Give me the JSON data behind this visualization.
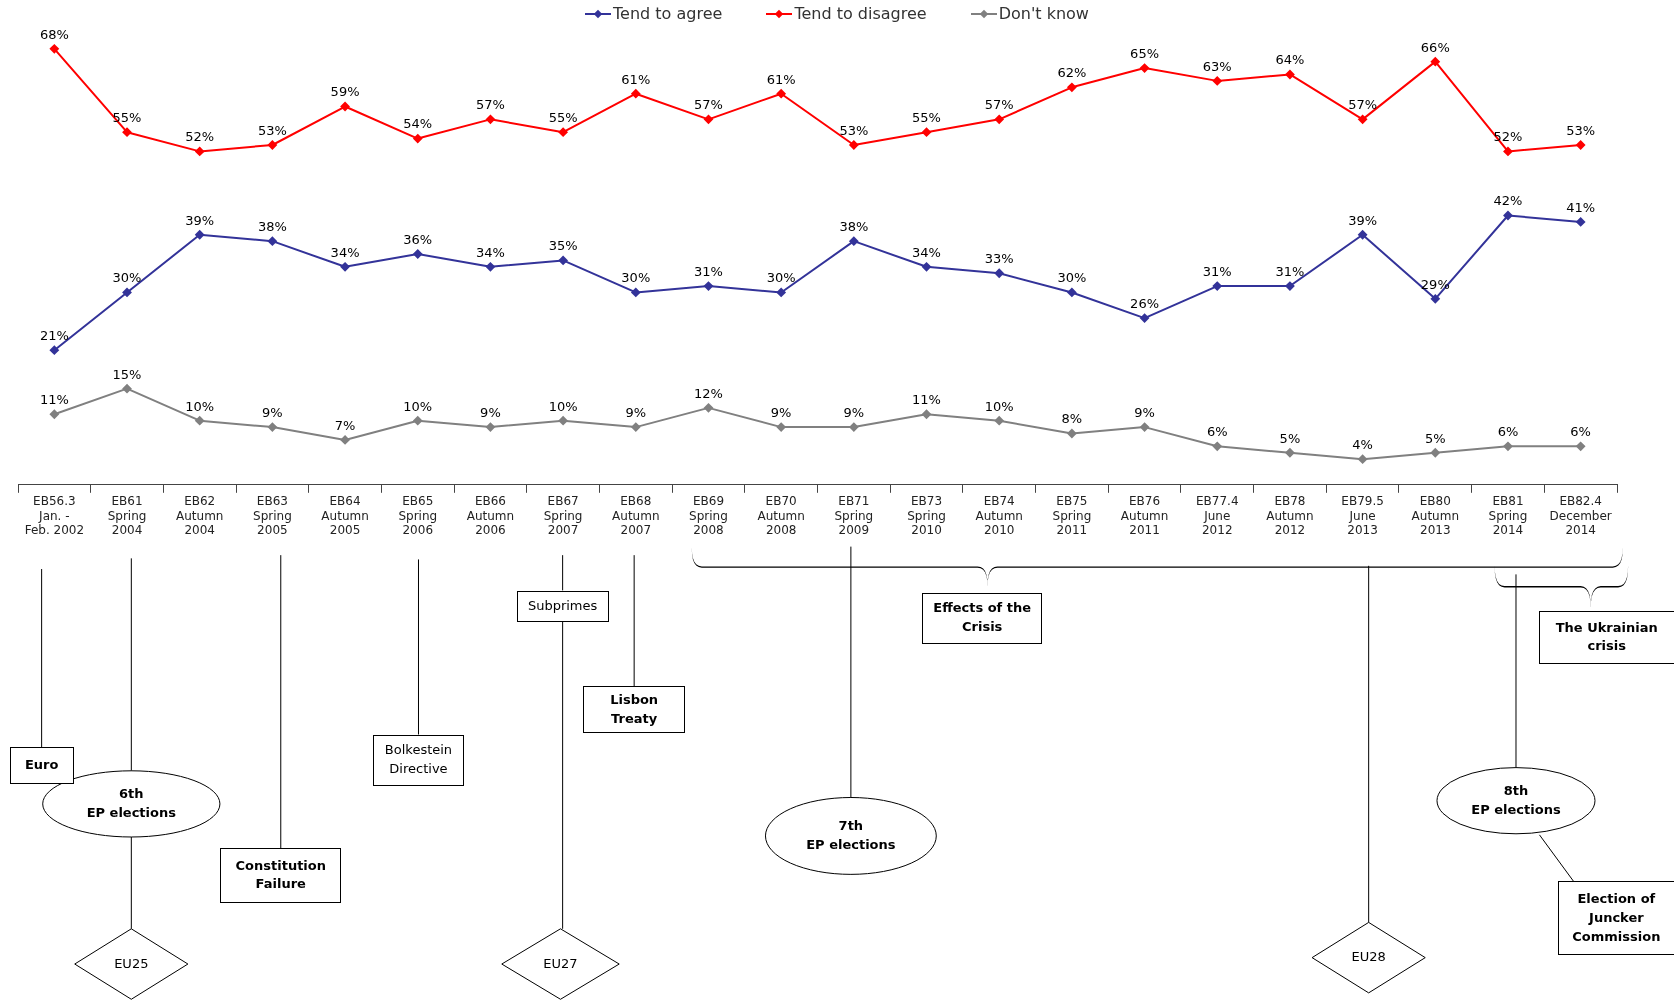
{
  "chart_data": {
    "type": "line",
    "legend": "top",
    "marker": "diamond",
    "grid": false,
    "tick_labels": "x",
    "categories": [
      "EB56.3\nJan. -\nFeb. 2002",
      "EB61\nSpring\n2004",
      "EB62\nAutumn\n2004",
      "EB63\nSpring\n2005",
      "EB64\nAutumn\n2005",
      "EB65\nSpring\n2006",
      "EB66\nAutumn\n2006",
      "EB67\nSpring\n2007",
      "EB68\nAutumn\n2007",
      "EB69\nSpring\n2008",
      "EB70\nAutumn\n2008",
      "EB71\nSpring\n2009",
      "EB73\nSpring\n2010",
      "EB74\nAutumn\n2010",
      "EB75\nSpring\n2011",
      "EB76\nAutumn\n2011",
      "EB77.4\nJune\n2012",
      "EB78\nAutumn\n2012",
      "EB79.5\nJune\n2013",
      "EB80\nAutumn\n2013",
      "EB81\nSpring\n2014",
      "EB82.4\nDecember\n2014"
    ],
    "series": [
      {
        "name": "Tend to agree",
        "color": "#333399",
        "values": [
          21,
          30,
          39,
          38,
          34,
          36,
          34,
          35,
          30,
          31,
          30,
          38,
          34,
          33,
          30,
          26,
          31,
          31,
          39,
          29,
          42,
          41
        ],
        "value_labels": [
          "21%",
          "30%",
          "39%",
          "38%",
          "34%",
          "36%",
          "34%",
          "35%",
          "30%",
          "31%",
          "30%",
          "38%",
          "34%",
          "33%",
          "30%",
          "26%",
          "31%",
          "31%",
          "39%",
          "29%",
          "42%",
          "41%"
        ]
      },
      {
        "name": "Tend to disagree",
        "color": "#ff0000",
        "values": [
          68,
          55,
          52,
          53,
          59,
          54,
          57,
          55,
          61,
          57,
          61,
          53,
          55,
          57,
          62,
          65,
          63,
          64,
          57,
          66,
          52,
          53
        ],
        "value_labels": [
          "68%",
          "55%",
          "52%",
          "53%",
          "59%",
          "54%",
          "57%",
          "55%",
          "61%",
          "57%",
          "61%",
          "53%",
          "55%",
          "57%",
          "62%",
          "65%",
          "63%",
          "64%",
          "57%",
          "66%",
          "52%",
          "53%"
        ]
      },
      {
        "name": "Don't know",
        "color": "#808080",
        "values": [
          11,
          15,
          10,
          9,
          7,
          10,
          9,
          10,
          9,
          12,
          9,
          9,
          11,
          10,
          8,
          9,
          6,
          5,
          4,
          5,
          6,
          6
        ],
        "value_labels": [
          "11%",
          "15%",
          "10%",
          "9%",
          "7%",
          "10%",
          "9%",
          "10%",
          "9%",
          "12%",
          "9%",
          "9%",
          "11%",
          "10%",
          "8%",
          "9%",
          "6%",
          "5%",
          "4%",
          "5%",
          "6%",
          "6%"
        ]
      }
    ],
    "annotations": [
      "Euro",
      "6th\nEP elections",
      "EU25",
      "Constitution\nFailure",
      "Bolkestein\nDirective",
      "Subprimes",
      "EU27",
      "Lisbon\nTreaty",
      "7th\nEP elections",
      "Effects of the\nCrisis",
      "EU28",
      "8th\nEP elections",
      "The Ukrainian\ncrisis",
      "Election of\nJuncker\nCommission"
    ]
  }
}
